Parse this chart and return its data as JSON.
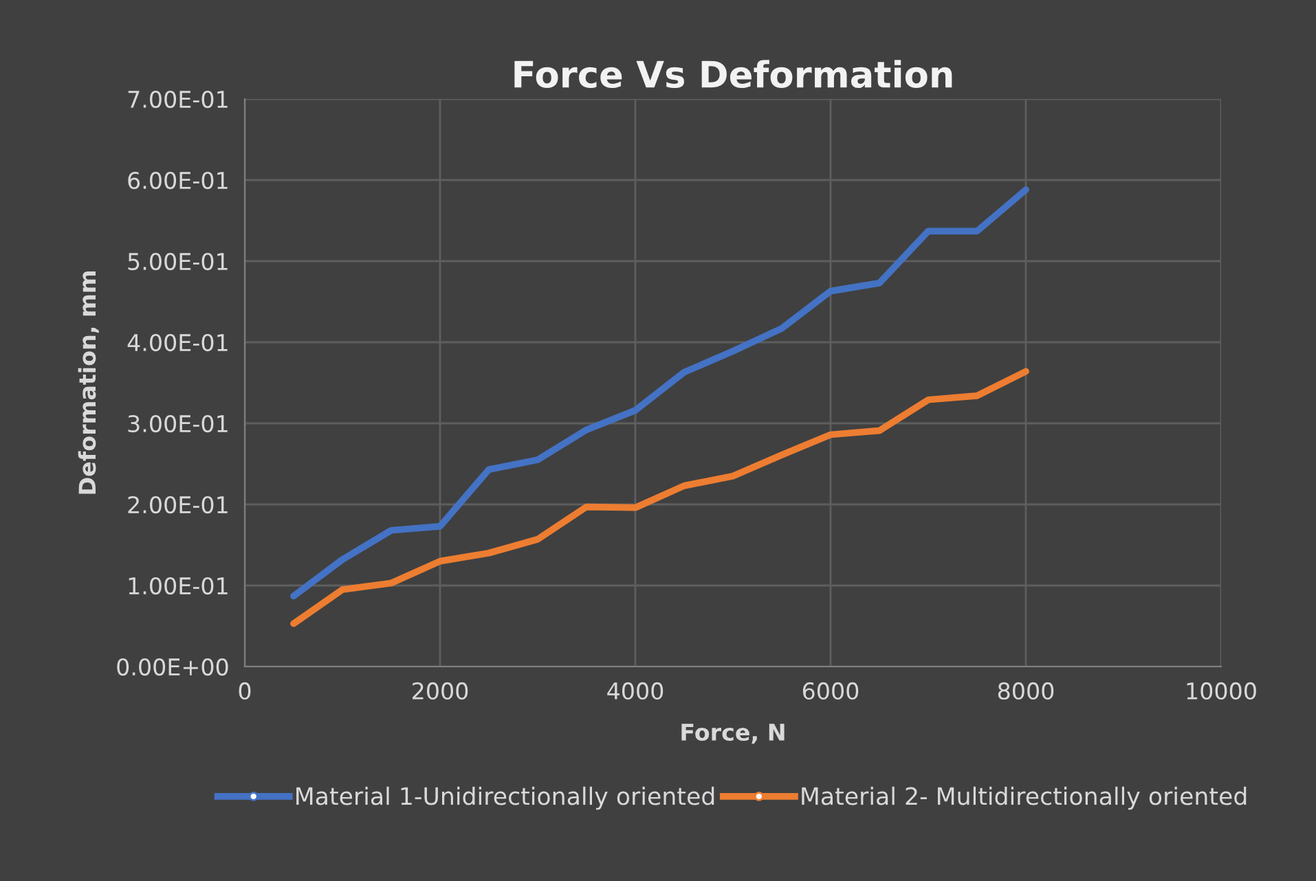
{
  "chart_data": {
    "type": "line",
    "title": "Force Vs Deformation",
    "xlabel": "Force, N",
    "ylabel": "Deformation, mm",
    "x": [
      500,
      1000,
      1500,
      2000,
      2500,
      3000,
      3500,
      4000,
      4500,
      5000,
      5500,
      6000,
      6500,
      7000,
      7500,
      8000
    ],
    "series": [
      {
        "name": "Material 1-Unidirectionally oriented",
        "color": "#4472c4",
        "values": [
          0.087,
          0.132,
          0.168,
          0.173,
          0.243,
          0.255,
          0.292,
          0.316,
          0.363,
          0.389,
          0.417,
          0.463,
          0.473,
          0.537,
          0.537,
          0.588
        ]
      },
      {
        "name": "Material 2- Multidirectionally oriented",
        "color": "#ed7d31",
        "values": [
          0.053,
          0.095,
          0.103,
          0.13,
          0.14,
          0.157,
          0.197,
          0.196,
          0.223,
          0.235,
          0.261,
          0.286,
          0.291,
          0.329,
          0.334,
          0.364
        ]
      }
    ],
    "xlim": [
      0,
      10000
    ],
    "xticks": [
      0,
      2000,
      4000,
      6000,
      8000,
      10000
    ],
    "ylim": [
      0,
      0.7
    ],
    "yticks": [
      {
        "value": 0,
        "label": "0.00E+00"
      },
      {
        "value": 0.1,
        "label": "1.00E-01"
      },
      {
        "value": 0.2,
        "label": "2.00E-01"
      },
      {
        "value": 0.3,
        "label": "3.00E-01"
      },
      {
        "value": 0.4,
        "label": "4.00E-01"
      },
      {
        "value": 0.5,
        "label": "5.00E-01"
      },
      {
        "value": 0.6,
        "label": "6.00E-01"
      },
      {
        "value": 0.7,
        "label": "7.00E-01"
      }
    ],
    "grid": true,
    "legend": "bottom",
    "marker": "none",
    "line_style": "solid"
  }
}
